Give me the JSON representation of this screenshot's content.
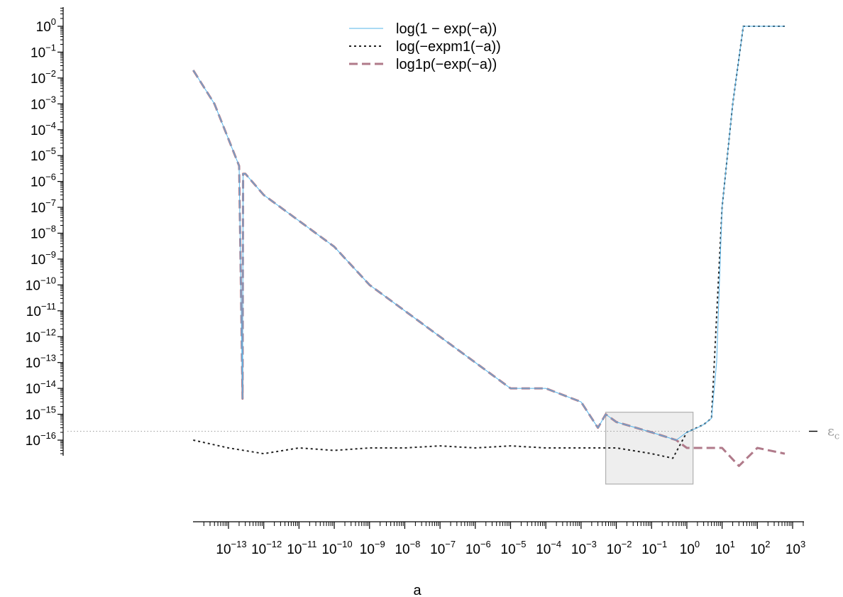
{
  "chart_data": {
    "type": "line",
    "xlabel": "a",
    "ylabel": "",
    "title": "",
    "x_scale": "log",
    "y_scale": "log",
    "xlim": [
      1e-14,
      1000.0
    ],
    "ylim": [
      1e-18,
      1.0
    ],
    "x_ticks": [
      {
        "base": "10",
        "exp": "−13",
        "value": 1e-13
      },
      {
        "base": "10",
        "exp": "−12",
        "value": 1e-12
      },
      {
        "base": "10",
        "exp": "−11",
        "value": 1e-11
      },
      {
        "base": "10",
        "exp": "−10",
        "value": 1e-10
      },
      {
        "base": "10",
        "exp": "−9",
        "value": 1e-09
      },
      {
        "base": "10",
        "exp": "−8",
        "value": 1e-08
      },
      {
        "base": "10",
        "exp": "−7",
        "value": 1e-07
      },
      {
        "base": "10",
        "exp": "−6",
        "value": 1e-06
      },
      {
        "base": "10",
        "exp": "−5",
        "value": 1e-05
      },
      {
        "base": "10",
        "exp": "−4",
        "value": 0.0001
      },
      {
        "base": "10",
        "exp": "−3",
        "value": 0.001
      },
      {
        "base": "10",
        "exp": "−2",
        "value": 0.01
      },
      {
        "base": "10",
        "exp": "−1",
        "value": 0.1
      },
      {
        "base": "10",
        "exp": "0",
        "value": 1.0
      },
      {
        "base": "10",
        "exp": "1",
        "value": 10.0
      },
      {
        "base": "10",
        "exp": "2",
        "value": 100.0
      },
      {
        "base": "10",
        "exp": "3",
        "value": 1000.0
      }
    ],
    "y_ticks": [
      {
        "base": "10",
        "exp": "0",
        "value": 1.0
      },
      {
        "base": "10",
        "exp": "−1",
        "value": 0.1
      },
      {
        "base": "10",
        "exp": "−2",
        "value": 0.01
      },
      {
        "base": "10",
        "exp": "−3",
        "value": 0.001
      },
      {
        "base": "10",
        "exp": "−4",
        "value": 0.0001
      },
      {
        "base": "10",
        "exp": "−5",
        "value": 1e-05
      },
      {
        "base": "10",
        "exp": "−6",
        "value": 1e-06
      },
      {
        "base": "10",
        "exp": "−7",
        "value": 1e-07
      },
      {
        "base": "10",
        "exp": "−8",
        "value": 1e-08
      },
      {
        "base": "10",
        "exp": "−9",
        "value": 1e-09
      },
      {
        "base": "10",
        "exp": "−10",
        "value": 1e-10
      },
      {
        "base": "10",
        "exp": "−11",
        "value": 1e-11
      },
      {
        "base": "10",
        "exp": "−12",
        "value": 1e-12
      },
      {
        "base": "10",
        "exp": "−13",
        "value": 1e-13
      },
      {
        "base": "10",
        "exp": "−14",
        "value": 1e-14
      },
      {
        "base": "10",
        "exp": "−15",
        "value": 1e-15
      },
      {
        "base": "10",
        "exp": "−16",
        "value": 1e-16
      }
    ],
    "reference_line": {
      "label_main": "ε",
      "label_sub": "c",
      "value": 2.2e-16,
      "color": "#9e9e9e"
    },
    "highlight_box": {
      "x": [
        0.005,
        1.5
      ],
      "y": [
        2e-18,
        1.2e-15
      ],
      "fill": "#eeeeee",
      "stroke": "#b0b0b0"
    },
    "legend": {
      "position": "top",
      "entries": [
        "log(1 − exp(−a))",
        "log(−expm1(−a))",
        "log1p(−exp(−a))"
      ]
    },
    "series": [
      {
        "name": "log(1 − exp(−a))",
        "color": "#56b4e9",
        "style": "solid",
        "x": [
          1e-14,
          4e-14,
          2e-13,
          2.5e-13,
          2.6e-13,
          3e-13,
          1e-12,
          1e-11,
          1e-10,
          1e-09,
          1e-08,
          1e-07,
          1e-06,
          1e-05,
          0.0001,
          0.001,
          0.003,
          0.005,
          0.01,
          0.1,
          0.5,
          1,
          2,
          3,
          5,
          7,
          10,
          20,
          40,
          100,
          600
        ],
        "y": [
          0.02,
          0.001,
          4e-06,
          4e-15,
          2e-06,
          2e-06,
          3e-07,
          3e-08,
          3e-09,
          1e-10,
          1e-11,
          1e-12,
          1e-13,
          1e-14,
          1e-14,
          3e-15,
          3e-16,
          1e-15,
          5e-16,
          2e-16,
          1e-16,
          2e-16,
          3e-16,
          4e-16,
          7e-16,
          1e-13,
          1e-07,
          0.001,
          1,
          1,
          1
        ]
      },
      {
        "name": "log(−expm1(−a))",
        "color": "#222222",
        "style": "dotted",
        "x": [
          1e-14,
          1e-13,
          1e-12,
          1e-11,
          1e-10,
          1e-09,
          1e-08,
          1e-07,
          1e-06,
          1e-05,
          0.0001,
          0.001,
          0.01,
          0.1,
          0.4,
          1,
          3,
          5,
          10,
          20,
          40,
          100,
          600
        ],
        "y": [
          1e-16,
          5e-17,
          3e-17,
          5e-17,
          4e-17,
          5e-17,
          5e-17,
          6e-17,
          5e-17,
          6e-17,
          5e-17,
          5e-17,
          5e-17,
          3e-17,
          2e-17,
          2e-16,
          4e-16,
          7e-16,
          1e-07,
          0.001,
          1,
          1,
          1
        ]
      },
      {
        "name": "log1p(−exp(−a))",
        "color": "#b07a8a",
        "style": "dashed",
        "x": [
          1e-14,
          4e-14,
          2e-13,
          2.5e-13,
          2.6e-13,
          3e-13,
          1e-12,
          1e-11,
          1e-10,
          1e-09,
          1e-08,
          1e-07,
          1e-06,
          1e-05,
          0.0001,
          0.001,
          0.003,
          0.005,
          0.01,
          0.1,
          0.5,
          1,
          3,
          10,
          30,
          100,
          600
        ],
        "y": [
          0.02,
          0.001,
          4e-06,
          4e-15,
          2e-06,
          2e-06,
          3e-07,
          3e-08,
          3e-09,
          1e-10,
          1e-11,
          1e-12,
          1e-13,
          1e-14,
          1e-14,
          3e-15,
          3e-16,
          1e-15,
          5e-16,
          2e-16,
          1e-16,
          5e-17,
          5e-17,
          5e-17,
          1e-17,
          5e-17,
          3e-17
        ]
      }
    ]
  }
}
